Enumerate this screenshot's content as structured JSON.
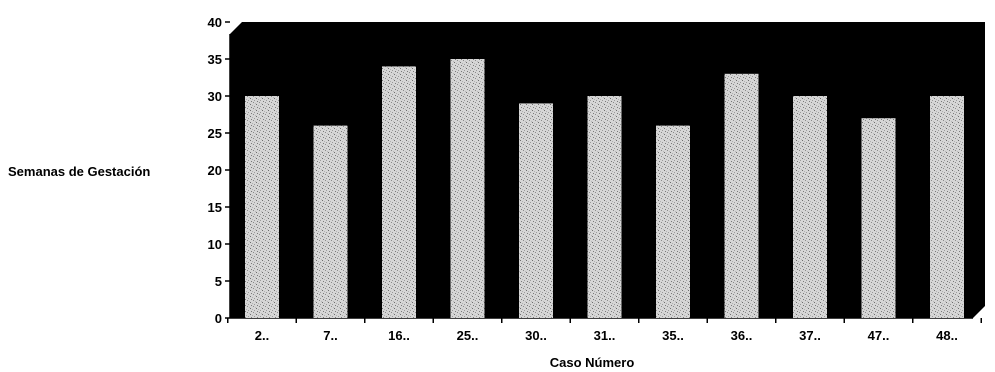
{
  "chart_data": {
    "type": "bar",
    "categories": [
      "2..",
      "7..",
      "16..",
      "25..",
      "30..",
      "31..",
      "35..",
      "36..",
      "37..",
      "47..",
      "48.."
    ],
    "values": [
      30,
      26,
      34,
      35,
      29,
      30,
      26,
      33,
      30,
      27,
      30
    ],
    "xlabel": "Caso Número",
    "ylabel": "Semanas de Gestación",
    "ylim": [
      0,
      40
    ],
    "yticks": [
      0,
      5,
      10,
      15,
      20,
      25,
      30,
      35,
      40
    ],
    "grid": false,
    "legend": "none",
    "colors": {
      "plot_background": "#000000",
      "bar_fill": "#d9d9d9",
      "bar_speckle": "#7a7a7a",
      "axis": "#000000"
    }
  }
}
